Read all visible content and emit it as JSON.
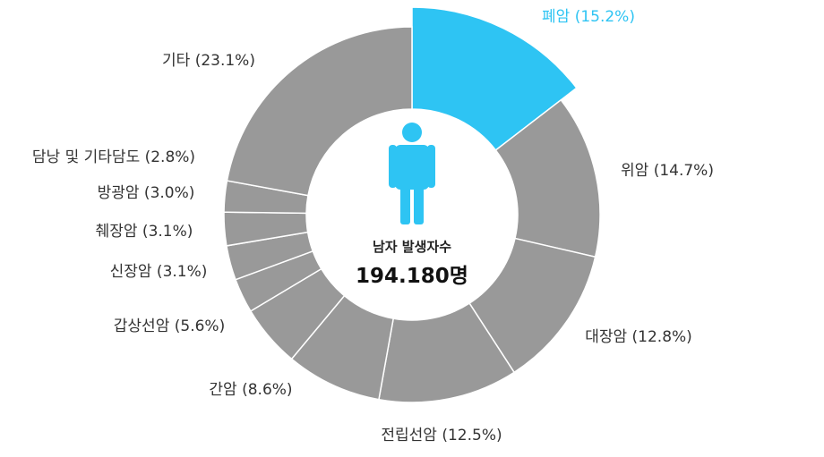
{
  "chart_data": {
    "type": "pie",
    "variant": "donut",
    "categories": [
      "폐암",
      "위암",
      "대장암",
      "전립선암",
      "간암",
      "갑상선암",
      "신장암",
      "췌장암",
      "방광암",
      "담낭 및 기타담도",
      "기타"
    ],
    "values": [
      15.2,
      14.7,
      12.8,
      12.5,
      8.6,
      5.6,
      3.1,
      3.1,
      3.0,
      2.8,
      23.1
    ],
    "labels": [
      "폐암 (15.2%)",
      "위암 (14.7%)",
      "대장암 (12.8%)",
      "전립선암 (12.5%)",
      "간암 (8.6%)",
      "갑상선암 (5.6%)",
      "신장암 (3.1%)",
      "췌장암 (3.1%)",
      "방광암 (3.0%)",
      "담낭 및 기타담도 (2.8%)",
      "기타 (23.1%)"
    ],
    "highlight_index": 0,
    "highlight_color": "#2ec4f3",
    "base_color": "#999999",
    "label_color": "#333333",
    "center": {
      "icon": "male-person-icon",
      "subtitle": "남자 발생자수",
      "total": "194.180명"
    }
  }
}
